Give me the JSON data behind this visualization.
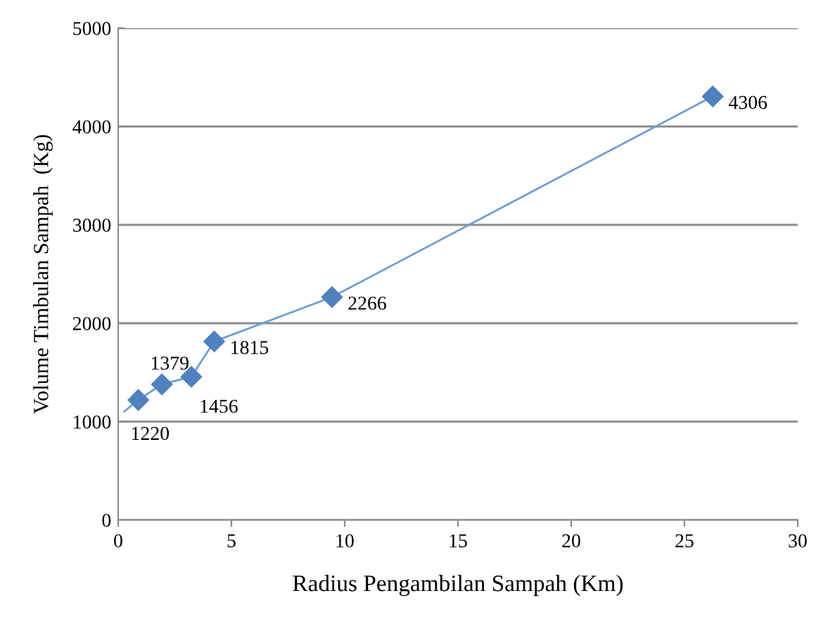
{
  "chart_data": {
    "type": "line",
    "xlabel": "Radius Pengambilan Sampah (Km)",
    "ylabel": "Volume Timbulan Sampah  (Kg)",
    "xlim": [
      0,
      30
    ],
    "xticks": [
      0,
      5,
      10,
      15,
      20,
      25,
      30
    ],
    "ylim": [
      0,
      5000
    ],
    "yticks": [
      0,
      1000,
      2000,
      3000,
      4000,
      5000
    ],
    "grid": "y",
    "series": [
      {
        "color": "#4f81bd",
        "x": [
          0.89,
          1.93,
          3.23,
          4.24,
          9.44,
          26.25
        ],
        "values": [
          1220,
          1379,
          1456,
          1815,
          2266,
          4306
        ],
        "marker": "diamond",
        "value_labels": [
          "1220",
          "1379",
          "1456",
          "1815",
          "2266",
          "4306"
        ]
      },
      {
        "color": "#6f9fd0",
        "x": [
          0.27,
          0.89
        ],
        "values": [
          1103,
          1220
        ],
        "marker": "none"
      }
    ]
  }
}
